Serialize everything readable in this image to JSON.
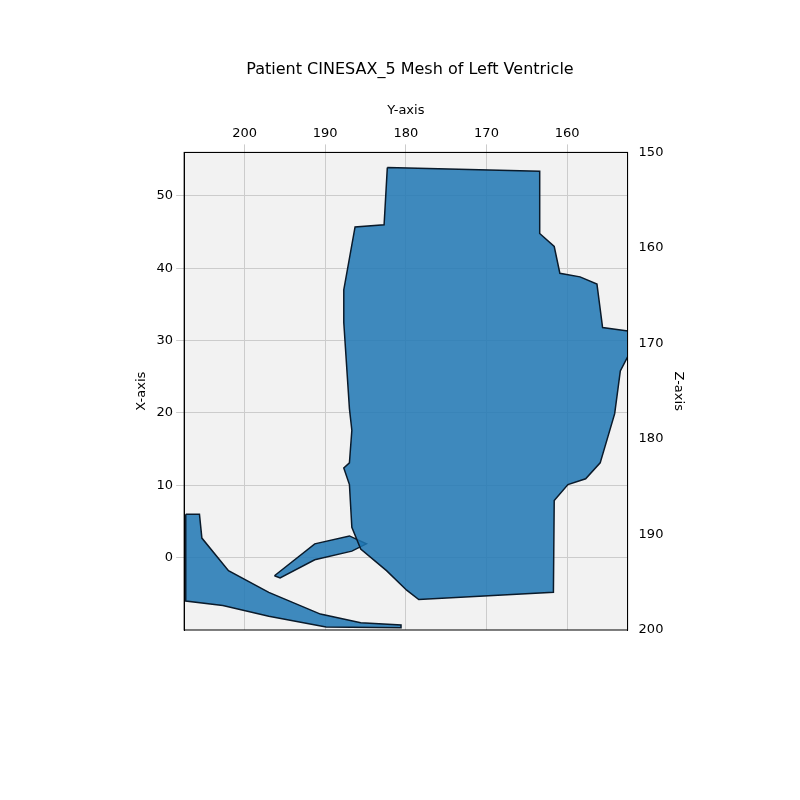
{
  "chart_data": {
    "type": "mesh",
    "title": "Patient CINESAX_5 Mesh of Left Ventricle",
    "x_label": "Y-axis",
    "y_label": "X-axis",
    "z_label": "Z-axis",
    "xlim": [
      207.5,
      152.5
    ],
    "xticks": [
      200,
      190,
      180,
      170,
      160
    ],
    "ylim": [
      -10,
      56
    ],
    "yticks": [
      0,
      10,
      20,
      30,
      40,
      50
    ],
    "zlim": [
      200,
      150
    ],
    "zticks": [
      150,
      160,
      170,
      180,
      190,
      200
    ],
    "grid": true,
    "series": [
      {
        "color": "#1f77b4",
        "x": [
          182.3,
          163.4,
          163.4,
          161.6,
          160.9,
          158.4,
          156.3,
          155.6,
          152.4,
          152.0,
          153.4,
          154.1,
          155.9,
          157.7,
          159.9,
          161.6,
          161.7,
          178.4,
          179.9,
          182.4,
          185.6,
          186.7,
          187.0,
          187.7,
          187.0,
          186.7,
          187.0,
          187.7,
          187.7,
          186.3,
          182.7
        ],
        "y": [
          53.9,
          53.4,
          44.8,
          43.0,
          39.3,
          38.8,
          37.8,
          31.8,
          31.3,
          28.8,
          25.8,
          19.9,
          13.1,
          10.9,
          10.1,
          7.9,
          -4.8,
          -5.8,
          -4.5,
          -1.8,
          1.2,
          4.2,
          10.1,
          12.4,
          13.1,
          17.6,
          20.6,
          32.5,
          37.0,
          45.7,
          46.0
        ]
      },
      {
        "color": "#1f77b4",
        "x": [
          207.3,
          205.6,
          205.3,
          202.0,
          197.0,
          190.6,
          185.6,
          180.6,
          180.6,
          189.9,
          197.0,
          202.7,
          207.3,
          207.3
        ],
        "y": [
          6.0,
          6.0,
          2.7,
          -1.8,
          -4.8,
          -7.8,
          -9.0,
          -9.3,
          -9.7,
          -9.6,
          -8.1,
          -6.6,
          -6.0,
          2.7
        ]
      },
      {
        "color": "#1f77b4",
        "x": [
          196.3,
          191.3,
          187.0,
          184.9,
          186.7,
          191.3,
          195.6
        ],
        "y": [
          -2.5,
          1.9,
          3.0,
          1.9,
          0.9,
          -0.3,
          -2.8
        ]
      }
    ]
  }
}
